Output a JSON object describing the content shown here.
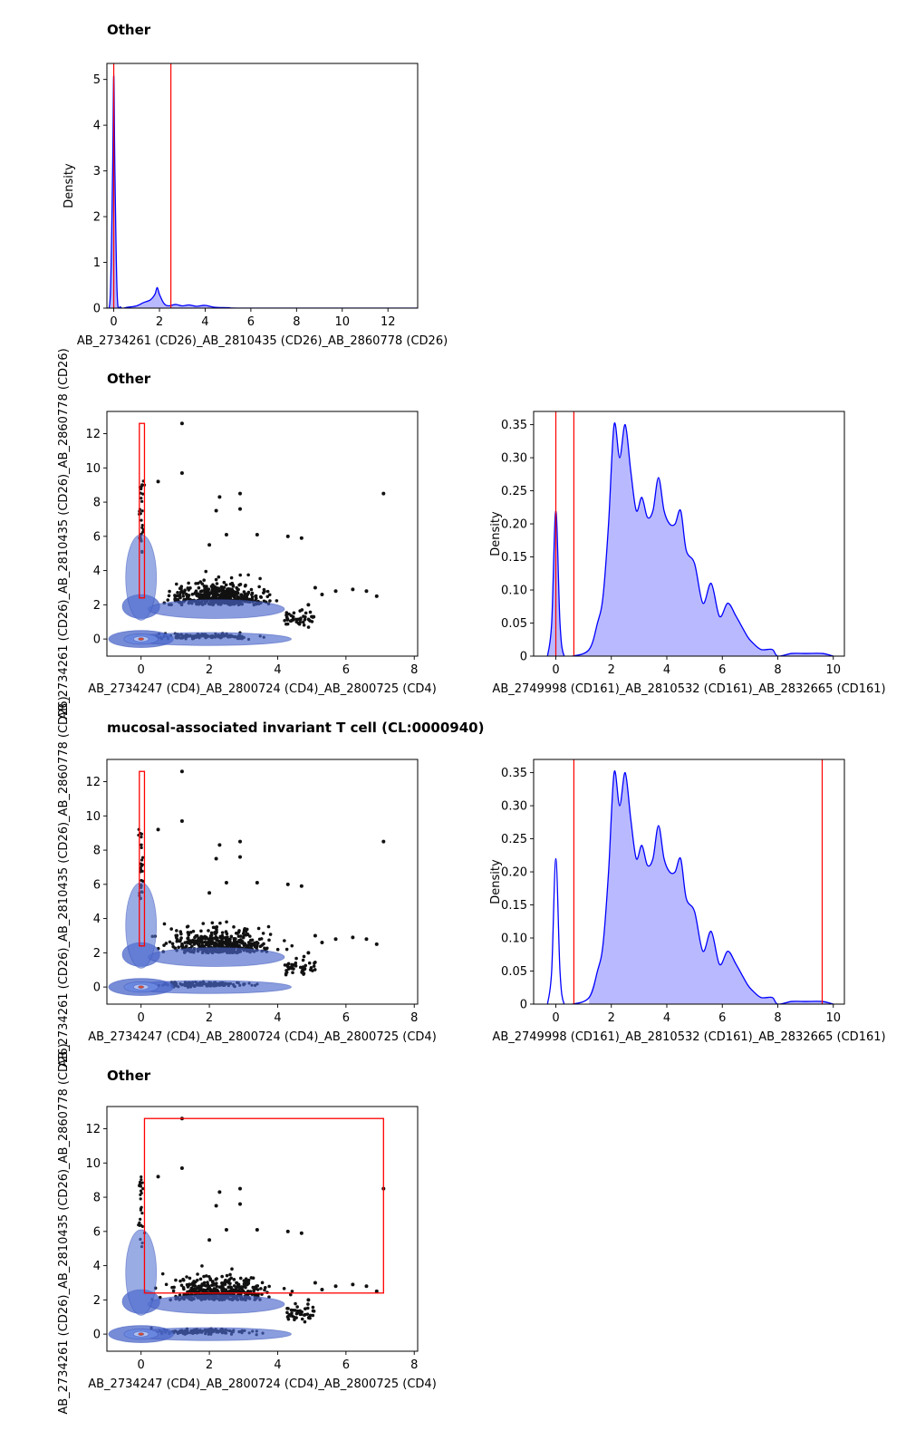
{
  "figure": {
    "row_titles": [
      "Other",
      "Other",
      "mucosal-associated invariant T cell (CL:0000940)",
      "Other"
    ]
  },
  "chart_data": [
    {
      "type": "area",
      "subtype": "density",
      "xlabel": "AB_2734261 (CD26)_AB_2810435 (CD26)_AB_2860778 (CD26)",
      "ylabel": "Density",
      "xlim": [
        -0.3,
        13.3
      ],
      "ylim": [
        0,
        5.35
      ],
      "xticks": [
        0,
        2,
        4,
        6,
        8,
        10,
        12
      ],
      "yticks": [
        0,
        1,
        2,
        3,
        4,
        5
      ],
      "curve": {
        "x": [
          -0.3,
          -0.15,
          -0.05,
          0,
          0.05,
          0.15,
          0.3,
          0.6,
          1.0,
          1.3,
          1.6,
          1.8,
          1.9,
          2.0,
          2.2,
          2.4,
          2.7,
          3.0,
          3.3,
          3.6,
          4.0,
          4.4,
          5.0,
          6.0,
          13.3
        ],
        "y": [
          0,
          0.3,
          3.0,
          5.1,
          3.0,
          0.3,
          0.02,
          0.02,
          0.05,
          0.12,
          0.18,
          0.3,
          0.45,
          0.3,
          0.1,
          0.05,
          0.08,
          0.05,
          0.07,
          0.04,
          0.06,
          0.02,
          0.01,
          0,
          0
        ]
      },
      "gates_x": [
        0.0,
        2.5
      ],
      "grid": false,
      "color": "#0000ff"
    },
    {
      "type": "scatter",
      "subtype": "density-contour-scatter",
      "xlabel": "AB_2734247 (CD4)_AB_2800724 (CD4)_AB_2800725 (CD4)",
      "ylabel": "AB_2734261 (CD26)_AB_2810435 (CD26)_AB_2860778 (CD26)",
      "xlim": [
        -1.0,
        8.1
      ],
      "ylim": [
        -1.0,
        13.3
      ],
      "xticks": [
        0,
        2,
        4,
        6,
        8
      ],
      "yticks": [
        0,
        2,
        4,
        6,
        8,
        10,
        12
      ],
      "gate_rect": {
        "x0": -0.05,
        "x1": 0.1,
        "y0": 2.4,
        "y1": 12.6
      },
      "outliers": {
        "x": [
          1.2,
          1.2,
          2.2,
          2.9,
          2.9,
          2.3,
          2.0,
          2.5,
          3.4,
          0.5,
          7.1,
          4.7,
          4.3,
          5.7,
          5.1,
          6.2,
          6.6,
          6.9,
          5.3,
          4.9
        ],
        "y": [
          12.6,
          9.7,
          7.5,
          8.5,
          7.6,
          8.3,
          5.5,
          6.1,
          6.1,
          9.2,
          8.5,
          5.9,
          6.0,
          2.8,
          3.0,
          2.9,
          2.8,
          2.5,
          2.6,
          2.0
        ]
      }
    },
    {
      "type": "area",
      "subtype": "density",
      "xlabel": "AB_2749998 (CD161)_AB_2810532 (CD161)_AB_2832665 (CD161)",
      "ylabel": "Density",
      "xlim": [
        -0.8,
        10.4
      ],
      "ylim": [
        0,
        0.37
      ],
      "xticks": [
        0,
        2,
        4,
        6,
        8,
        10
      ],
      "yticks": [
        0.0,
        0.05,
        0.1,
        0.15,
        0.2,
        0.25,
        0.3,
        0.35
      ],
      "curve": {
        "x": [
          -0.3,
          -0.15,
          0,
          0.15,
          0.3,
          0.6,
          1.2,
          1.5,
          1.7,
          1.9,
          2.1,
          2.3,
          2.5,
          2.7,
          2.9,
          3.1,
          3.3,
          3.5,
          3.7,
          3.9,
          4.1,
          4.3,
          4.5,
          4.7,
          5.0,
          5.3,
          5.6,
          5.9,
          6.2,
          6.5,
          6.9,
          7.1,
          7.4,
          7.8,
          8.0,
          8.5,
          9.0,
          9.6,
          10.0
        ],
        "y": [
          0,
          0.05,
          0.22,
          0.05,
          0,
          0,
          0.01,
          0.05,
          0.09,
          0.2,
          0.35,
          0.3,
          0.35,
          0.28,
          0.22,
          0.24,
          0.21,
          0.22,
          0.27,
          0.22,
          0.2,
          0.2,
          0.22,
          0.16,
          0.14,
          0.08,
          0.11,
          0.06,
          0.08,
          0.06,
          0.03,
          0.02,
          0.01,
          0.01,
          0,
          0.004,
          0.004,
          0.004,
          0
        ]
      },
      "gates_x": [
        0.0,
        0.65
      ],
      "grid": false,
      "color": "#0000ff"
    },
    {
      "type": "scatter",
      "subtype": "density-contour-scatter",
      "xlabel": "AB_2734247 (CD4)_AB_2800724 (CD4)_AB_2800725 (CD4)",
      "ylabel": "AB_2734261 (CD26)_AB_2810435 (CD26)_AB_2860778 (CD26)",
      "xlim": [
        -1.0,
        8.1
      ],
      "ylim": [
        -1.0,
        13.3
      ],
      "xticks": [
        0,
        2,
        4,
        6,
        8
      ],
      "yticks": [
        0,
        2,
        4,
        6,
        8,
        10,
        12
      ],
      "gate_rect": {
        "x0": -0.05,
        "x1": 0.1,
        "y0": 2.4,
        "y1": 12.6
      },
      "outliers": {
        "x": [
          1.2,
          1.2,
          2.2,
          2.9,
          2.9,
          2.3,
          2.0,
          2.5,
          3.4,
          0.5,
          7.1,
          4.7,
          4.3,
          5.7,
          5.1,
          6.2,
          6.6,
          6.9,
          5.3,
          4.9
        ],
        "y": [
          12.6,
          9.7,
          7.5,
          8.5,
          7.6,
          8.3,
          5.5,
          6.1,
          6.1,
          9.2,
          8.5,
          5.9,
          6.0,
          2.8,
          3.0,
          2.9,
          2.8,
          2.5,
          2.6,
          2.0
        ]
      }
    },
    {
      "type": "area",
      "subtype": "density",
      "xlabel": "AB_2749998 (CD161)_AB_2810532 (CD161)_AB_2832665 (CD161)",
      "ylabel": "Density",
      "xlim": [
        -0.8,
        10.4
      ],
      "ylim": [
        0,
        0.37
      ],
      "xticks": [
        0,
        2,
        4,
        6,
        8,
        10
      ],
      "yticks": [
        0.0,
        0.05,
        0.1,
        0.15,
        0.2,
        0.25,
        0.3,
        0.35
      ],
      "curve": {
        "x": [
          -0.3,
          -0.15,
          0,
          0.15,
          0.3,
          0.6,
          1.2,
          1.5,
          1.7,
          1.9,
          2.1,
          2.3,
          2.5,
          2.7,
          2.9,
          3.1,
          3.3,
          3.5,
          3.7,
          3.9,
          4.1,
          4.3,
          4.5,
          4.7,
          5.0,
          5.3,
          5.6,
          5.9,
          6.2,
          6.5,
          6.9,
          7.1,
          7.4,
          7.8,
          8.0,
          8.5,
          9.0,
          9.6,
          10.0
        ],
        "y": [
          0,
          0.05,
          0.22,
          0.05,
          0,
          0,
          0.01,
          0.05,
          0.09,
          0.2,
          0.35,
          0.3,
          0.35,
          0.28,
          0.22,
          0.24,
          0.21,
          0.22,
          0.27,
          0.22,
          0.2,
          0.2,
          0.22,
          0.16,
          0.14,
          0.08,
          0.11,
          0.06,
          0.08,
          0.06,
          0.03,
          0.02,
          0.01,
          0.01,
          0,
          0.004,
          0.004,
          0.004,
          0
        ]
      },
      "fill_from_x": 0.65,
      "gates_x": [
        0.65,
        9.6
      ],
      "grid": false,
      "color": "#0000ff"
    },
    {
      "type": "scatter",
      "subtype": "density-contour-scatter",
      "xlabel": "AB_2734247 (CD4)_AB_2800724 (CD4)_AB_2800725 (CD4)",
      "ylabel": "AB_2734261 (CD26)_AB_2810435 (CD26)_AB_2860778 (CD26)",
      "xlim": [
        -1.0,
        8.1
      ],
      "ylim": [
        -1.0,
        13.3
      ],
      "xticks": [
        0,
        2,
        4,
        6,
        8
      ],
      "yticks": [
        0,
        2,
        4,
        6,
        8,
        10,
        12
      ],
      "gate_rect": {
        "x0": 0.1,
        "x1": 7.1,
        "y0": 2.4,
        "y1": 12.6
      },
      "outliers": {
        "x": [
          1.2,
          1.2,
          2.2,
          2.9,
          2.9,
          2.3,
          2.0,
          2.5,
          3.4,
          0.5,
          7.1,
          4.7,
          4.3,
          5.7,
          5.1,
          6.2,
          6.6,
          6.9,
          5.3,
          4.9
        ],
        "y": [
          12.6,
          9.7,
          7.5,
          8.5,
          7.6,
          8.3,
          5.5,
          6.1,
          6.1,
          9.2,
          8.5,
          5.9,
          6.0,
          2.8,
          3.0,
          2.9,
          2.8,
          2.5,
          2.6,
          2.0
        ]
      }
    }
  ]
}
